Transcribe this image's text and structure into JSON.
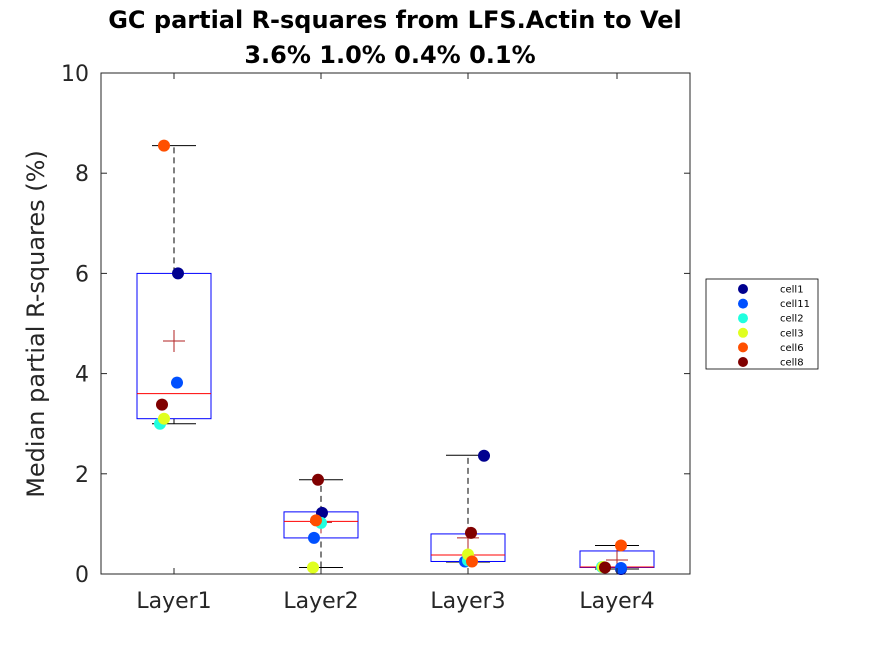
{
  "chart_data": {
    "type": "box",
    "title": "GC partial R-squares from LFS.Actin to Vel",
    "subtitle": "3.6% 1.0% 0.4% 0.1%",
    "xlabel": "",
    "ylabel": "Median partial R-squares (%)",
    "ylim": [
      0,
      10
    ],
    "yticks": [
      0,
      2,
      4,
      6,
      8,
      10
    ],
    "categories": [
      "Layer1",
      "Layer2",
      "Layer3",
      "Layer4"
    ],
    "grid": false,
    "legend_placement": "right",
    "boxes": [
      {
        "category": "Layer1",
        "whisker_low": 3.0,
        "q1": 3.1,
        "median": 3.6,
        "q3": 6.0,
        "whisker_high": 8.55,
        "mean": 4.65
      },
      {
        "category": "Layer2",
        "whisker_low": 0.13,
        "q1": 0.72,
        "median": 1.05,
        "q3": 1.24,
        "whisker_high": 1.88,
        "mean": 1.03
      },
      {
        "category": "Layer3",
        "whisker_low": 0.24,
        "q1": 0.25,
        "median": 0.38,
        "q3": 0.8,
        "whisker_high": 2.37,
        "mean": 0.72
      },
      {
        "category": "Layer4",
        "whisker_low": 0.1,
        "q1": 0.13,
        "median": 0.14,
        "q3": 0.46,
        "whisker_high": 0.57,
        "mean": 0.28
      }
    ],
    "series": [
      {
        "name": "cell1",
        "color": "#00008f",
        "values": [
          6.0,
          1.22,
          2.36,
          0.1
        ]
      },
      {
        "name": "cell11",
        "color": "#0050ff",
        "values": [
          3.82,
          0.72,
          0.25,
          0.12
        ]
      },
      {
        "name": "cell2",
        "color": "#20ffdf",
        "values": [
          3.0,
          1.02,
          0.27,
          0.14
        ]
      },
      {
        "name": "cell3",
        "color": "#e0ff1f",
        "values": [
          3.1,
          0.13,
          0.39,
          0.14
        ]
      },
      {
        "name": "cell6",
        "color": "#ff4f00",
        "values": [
          8.55,
          1.07,
          0.25,
          0.57
        ]
      },
      {
        "name": "cell8",
        "color": "#800000",
        "values": [
          3.38,
          1.88,
          0.82,
          0.13
        ]
      }
    ],
    "styles": {
      "box_color": "#0000ff",
      "median_color": "#ff0000",
      "mean_marker_color": "#b22222",
      "whisker_color": "#000000",
      "axis_color": "#262626"
    }
  }
}
